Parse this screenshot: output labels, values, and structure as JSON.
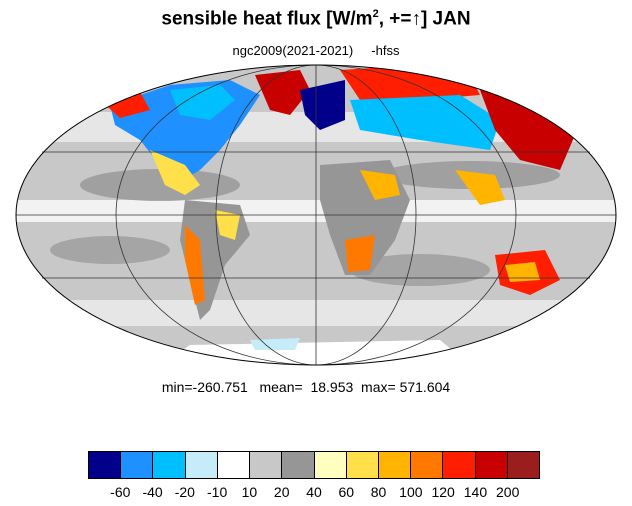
{
  "title": {
    "text_before_sup": "sensible heat flux [W/m",
    "sup": "2",
    "text_after_sup": ", +=",
    "arrow": "↑",
    "text_end": "]  JAN"
  },
  "subtitle": "ngc2009(2021-2021)     -hfss",
  "stats": "min=-260.751   mean=  18.953  max= 571.604",
  "colorbar": {
    "colors": [
      "#00008b",
      "#1e90ff",
      "#00bfff",
      "#c6ecfa",
      "#ffffff",
      "#c8c8c8",
      "#969696",
      "#ffffc0",
      "#ffe04a",
      "#ffb400",
      "#ff7800",
      "#ff1e00",
      "#c80000",
      "#9b1e1e"
    ],
    "labels": [
      "-60",
      "-40",
      "-20",
      "-10",
      "10",
      "20",
      "40",
      "60",
      "80",
      "100",
      "120",
      "140",
      "200"
    ]
  },
  "map": {
    "projection": "mollweide",
    "ocean_fill": "#c8c8c8",
    "grid_color": "#333333"
  }
}
